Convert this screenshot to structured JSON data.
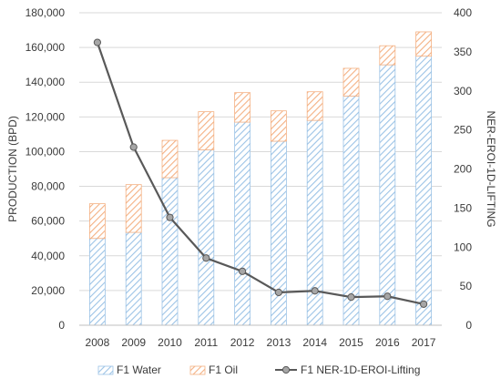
{
  "chart_data": {
    "type": "bar",
    "categories": [
      "2008",
      "2009",
      "2010",
      "2011",
      "2012",
      "2013",
      "2014",
      "2015",
      "2016",
      "2017"
    ],
    "series": [
      {
        "name": "F1 Water",
        "kind": "stacked-bar",
        "axis": "left",
        "pattern": "diagonal-hatch",
        "color": "#9cc3e6",
        "values": [
          50000,
          53500,
          85000,
          101000,
          117000,
          106000,
          118000,
          132000,
          150000,
          155000
        ]
      },
      {
        "name": "F1 Oil",
        "kind": "stacked-bar",
        "axis": "left",
        "pattern": "diagonal-hatch",
        "color": "#f4b183",
        "values": [
          20000,
          27500,
          21500,
          22000,
          17000,
          17500,
          16500,
          16000,
          11000,
          14000
        ]
      },
      {
        "name": "F1 NER-1D-EROI-Lifting",
        "kind": "line-markers",
        "axis": "right",
        "color": "#595959",
        "marker_color": "#a6a6a6",
        "values": [
          362,
          228,
          138,
          86,
          69,
          42,
          44,
          36,
          37,
          27
        ]
      }
    ],
    "ylabel": "PRODUCTION (BPD)",
    "ylim": [
      0,
      180000
    ],
    "yticks": [
      "0",
      "20,000",
      "40,000",
      "60,000",
      "80,000",
      "100,000",
      "120,000",
      "140,000",
      "160,000",
      "180,000"
    ],
    "y2label": "NER-EROI-1D-LIFTING",
    "y2lim": [
      0,
      400
    ],
    "y2ticks": [
      "0",
      "50",
      "100",
      "150",
      "200",
      "250",
      "300",
      "350",
      "400"
    ],
    "grid": true,
    "legend_position": "bottom",
    "grid_color": "#d9d9d9"
  }
}
